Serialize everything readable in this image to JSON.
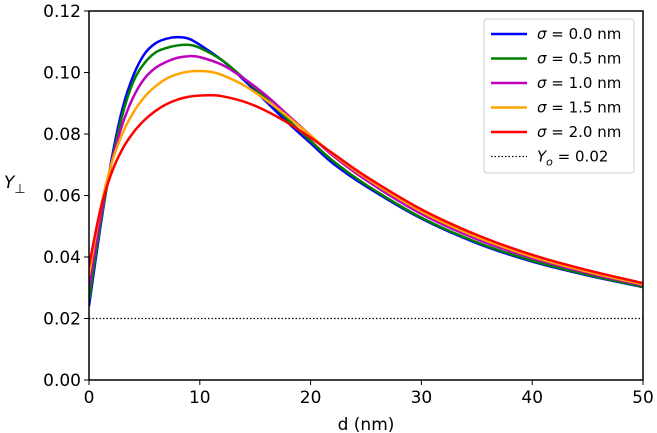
{
  "chart_data": {
    "type": "line",
    "xlabel": "d (nm)",
    "ylabel": "Y",
    "ylabel_subscript": "⊥",
    "xlim": [
      0,
      50
    ],
    "ylim": [
      0,
      0.12
    ],
    "x_ticks": [
      0,
      10,
      20,
      30,
      40,
      50
    ],
    "x_tick_labels": [
      "0",
      "10",
      "20",
      "30",
      "40",
      "50"
    ],
    "y_ticks": [
      0,
      0.02,
      0.04,
      0.06,
      0.08,
      0.1,
      0.12
    ],
    "y_tick_labels": [
      "0.00",
      "0.02",
      "0.04",
      "0.06",
      "0.08",
      "0.10",
      "0.12"
    ],
    "grid": false,
    "legend_position": "top-right",
    "series": [
      {
        "name_symbol": "σ",
        "name_value": " = 0.0 nm",
        "color": "#0000ff",
        "style": "solid",
        "x": [
          0,
          1,
          2,
          3,
          4,
          5,
          6,
          7,
          8,
          9,
          10,
          12,
          14,
          16,
          18,
          20,
          22,
          25,
          30,
          35,
          40,
          45,
          50
        ],
        "y": [
          0.024,
          0.049,
          0.071,
          0.088,
          0.099,
          0.106,
          0.1095,
          0.111,
          0.1115,
          0.111,
          0.109,
          0.104,
          0.0975,
          0.0905,
          0.0835,
          0.077,
          0.0705,
          0.063,
          0.0525,
          0.0445,
          0.0385,
          0.034,
          0.0302
        ]
      },
      {
        "name_symbol": "σ",
        "name_value": " = 0.5 nm",
        "color": "#008000",
        "style": "solid",
        "x": [
          0,
          1,
          2,
          3,
          4,
          5,
          6,
          7,
          8,
          9,
          10,
          12,
          14,
          16,
          18,
          20,
          22,
          25,
          30,
          35,
          40,
          45,
          50
        ],
        "y": [
          0.026,
          0.05,
          0.07,
          0.086,
          0.097,
          0.103,
          0.1065,
          0.108,
          0.1088,
          0.109,
          0.108,
          0.104,
          0.098,
          0.0915,
          0.0845,
          0.0778,
          0.0713,
          0.0635,
          0.0528,
          0.0448,
          0.0388,
          0.0342,
          0.0303
        ]
      },
      {
        "name_symbol": "σ",
        "name_value": " = 1.0 nm",
        "color": "#bf00bf",
        "style": "solid",
        "x": [
          0,
          1,
          2,
          3,
          4,
          5,
          6,
          7,
          8,
          9,
          10,
          12,
          14,
          16,
          18,
          20,
          22,
          25,
          30,
          35,
          40,
          45,
          50
        ],
        "y": [
          0.03,
          0.052,
          0.07,
          0.083,
          0.092,
          0.098,
          0.1015,
          0.1035,
          0.1048,
          0.1053,
          0.105,
          0.1025,
          0.098,
          0.0925,
          0.086,
          0.0795,
          0.073,
          0.065,
          0.054,
          0.0458,
          0.0396,
          0.0348,
          0.0308
        ]
      },
      {
        "name_symbol": "σ",
        "name_value": " = 1.5 nm",
        "color": "#ffa500",
        "style": "solid",
        "x": [
          0,
          1,
          2,
          3,
          4,
          5,
          6,
          7,
          8,
          9,
          10,
          11,
          12,
          14,
          16,
          18,
          20,
          22,
          25,
          30,
          35,
          40,
          45,
          50
        ],
        "y": [
          0.034,
          0.055,
          0.07,
          0.08,
          0.087,
          0.092,
          0.0955,
          0.098,
          0.0995,
          0.1003,
          0.1005,
          0.1002,
          0.0992,
          0.0958,
          0.091,
          0.0855,
          0.0795,
          0.0735,
          0.0657,
          0.0548,
          0.0465,
          0.0401,
          0.0352,
          0.0311
        ]
      },
      {
        "name_symbol": "σ",
        "name_value": " = 2.0 nm",
        "color": "#ff0000",
        "style": "solid",
        "x": [
          0,
          1,
          2,
          3,
          4,
          5,
          6,
          7,
          8,
          9,
          10,
          11,
          12,
          14,
          16,
          18,
          20,
          22,
          25,
          30,
          35,
          40,
          45,
          50
        ],
        "y": [
          0.037,
          0.055,
          0.067,
          0.075,
          0.0805,
          0.0845,
          0.0875,
          0.0897,
          0.0912,
          0.0921,
          0.0925,
          0.0926,
          0.0923,
          0.0905,
          0.0875,
          0.0835,
          0.0788,
          0.0737,
          0.0662,
          0.0555,
          0.0472,
          0.0407,
          0.0357,
          0.0315
        ]
      },
      {
        "name_symbol": "Y",
        "name_subscript": "o",
        "name_value": " = 0.02",
        "color": "#000000",
        "style": "dotted",
        "x": [
          0,
          50
        ],
        "y": [
          0.02,
          0.02
        ]
      }
    ]
  }
}
